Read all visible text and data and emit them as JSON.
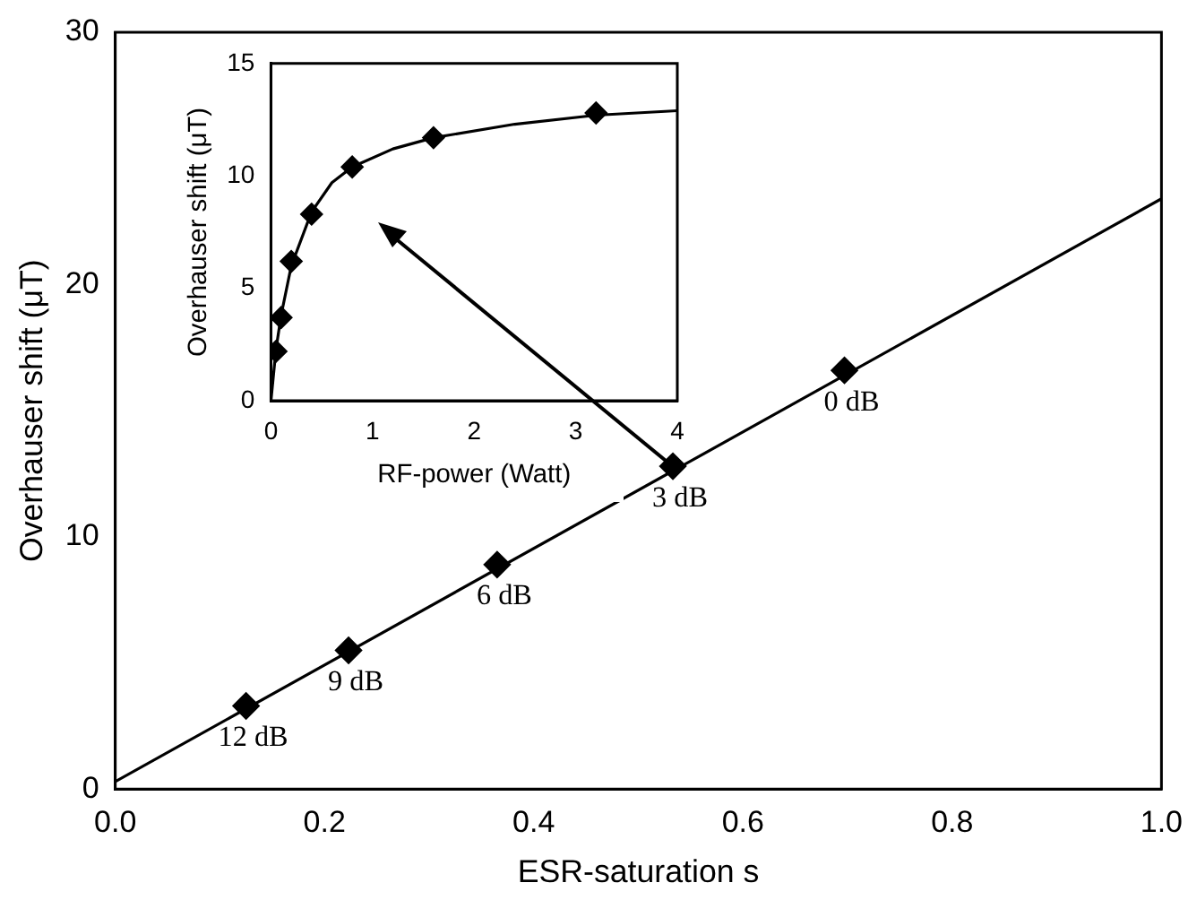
{
  "chart_data": [
    {
      "type": "scatter",
      "xlabel": "ESR-saturation s",
      "ylabel": "Overhauser shift (μT)",
      "xlim": [
        0,
        1
      ],
      "ylim": [
        0,
        30
      ],
      "xticks": [
        {
          "value": 0,
          "label": "0.0"
        },
        0.2,
        0.4,
        0.6,
        0.8,
        {
          "value": 1,
          "label": "1.0"
        }
      ],
      "yticks": [
        0,
        10,
        20,
        30
      ],
      "grid": false,
      "legend": false,
      "series": [
        {
          "type": "line",
          "color": "#000000",
          "marker": "none",
          "x": [
            0,
            1
          ],
          "values": [
            0.3,
            23.4
          ]
        },
        {
          "type": "scatter",
          "color": "#000000",
          "marker": "diamond",
          "x": [
            0.125,
            0.223,
            0.365,
            0.533,
            0.697
          ],
          "values": [
            3.3,
            5.5,
            8.9,
            12.8,
            16.6
          ]
        }
      ],
      "annotations": [
        {
          "text": "12 dB",
          "x": 0.125,
          "y": 3.3
        },
        {
          "text": "9 dB",
          "x": 0.223,
          "y": 5.5
        },
        {
          "text": "6 dB",
          "x": 0.365,
          "y": 8.9
        },
        {
          "text": "3 dB",
          "x": 0.533,
          "y": 12.8
        },
        {
          "text": "0 dB",
          "x": 0.697,
          "y": 16.6
        }
      ]
    },
    {
      "type": "scatter",
      "xlabel": "RF-power (Watt)",
      "ylabel": "Overhauser shift (μT)",
      "xlim": [
        0,
        4
      ],
      "ylim": [
        0,
        15
      ],
      "xticks": [
        0,
        1,
        2,
        3,
        4
      ],
      "yticks": [
        0,
        5,
        10,
        15
      ],
      "grid": false,
      "legend": false,
      "series": [
        {
          "type": "line",
          "color": "#000000",
          "marker": "none",
          "x": [
            0,
            0.05,
            0.1,
            0.2,
            0.4,
            0.6,
            0.8,
            1.2,
            1.6,
            2.4,
            3.2,
            4
          ],
          "values": [
            0,
            2.3,
            3.8,
            6.0,
            8.4,
            9.7,
            10.4,
            11.2,
            11.7,
            12.3,
            12.7,
            12.9
          ]
        },
        {
          "type": "scatter",
          "color": "#000000",
          "marker": "diamond",
          "x": [
            0.05,
            0.1,
            0.2,
            0.4,
            0.8,
            1.6,
            3.2
          ],
          "values": [
            2.2,
            3.7,
            6.2,
            8.3,
            10.4,
            11.7,
            12.8
          ]
        }
      ]
    }
  ]
}
